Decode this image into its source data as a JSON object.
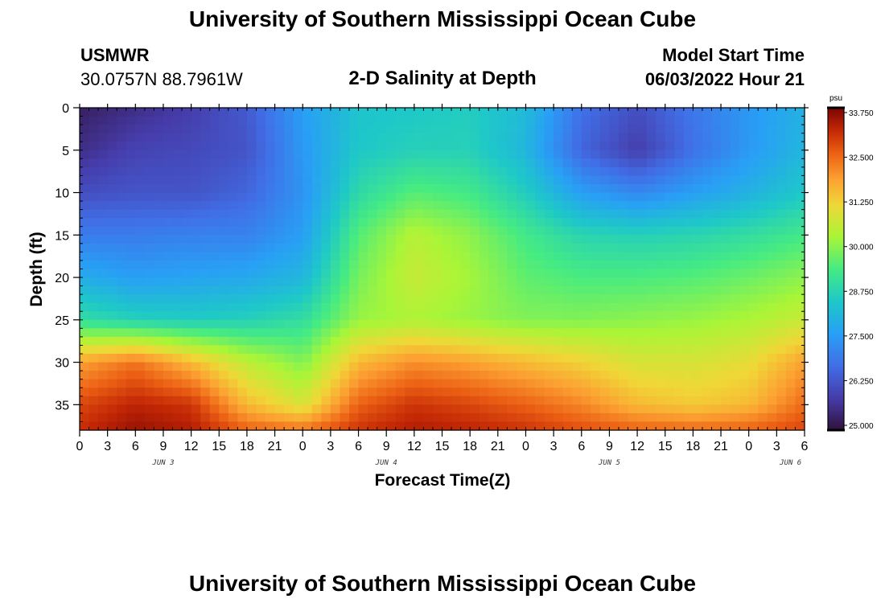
{
  "header": {
    "title": "University of Southern Mississippi Ocean Cube",
    "station_name": "USMWR",
    "coordinates": "30.0757N  88.7961W",
    "plot_title": "2-D Salinity at Depth",
    "model_start_label": "Model Start Time",
    "model_start_value": "06/03/2022 Hour 21"
  },
  "footer": {
    "title": "University of Southern Mississippi Ocean Cube"
  },
  "chart_data": {
    "type": "heatmap",
    "title": "2-D Salinity at Depth",
    "xlabel": "Forecast Time(Z)",
    "ylabel": "Depth (ft)",
    "x_ticks": [
      "0",
      "3",
      "6",
      "9",
      "12",
      "15",
      "18",
      "21",
      "0",
      "3",
      "6",
      "9",
      "12",
      "15",
      "18",
      "21",
      "0",
      "3",
      "6",
      "9",
      "12",
      "15",
      "18",
      "21",
      "0",
      "3",
      "6"
    ],
    "x_day_labels": [
      {
        "label": "JUN 3",
        "tick_index": 3
      },
      {
        "label": "JUN 4",
        "tick_index": 11
      },
      {
        "label": "JUN 5",
        "tick_index": 19
      },
      {
        "label": "JUN 6",
        "tick_index": 25.5
      }
    ],
    "x_range_hours": [
      0,
      78
    ],
    "ylim": [
      0,
      38
    ],
    "y_ticks": [
      0,
      5,
      10,
      15,
      20,
      25,
      30,
      35
    ],
    "colorbar": {
      "unit": "psu",
      "min": 25.0,
      "max": 33.75,
      "ticks": [
        "33.750",
        "32.500",
        "31.250",
        "30.000",
        "28.750",
        "27.500",
        "26.250",
        "25.000"
      ]
    },
    "grid_x_hours": [
      0,
      6,
      12,
      18,
      24,
      30,
      36,
      42,
      48,
      54,
      60,
      66,
      72,
      78
    ],
    "grid_y_depth": [
      0,
      5,
      10,
      15,
      20,
      25,
      30,
      35,
      38
    ],
    "z_values": [
      [
        25.3,
        25.6,
        25.9,
        26.4,
        27.6,
        28.4,
        28.5,
        28.6,
        28.2,
        26.8,
        26.2,
        26.9,
        27.5,
        28.0
      ],
      [
        25.6,
        26.0,
        26.1,
        26.3,
        27.5,
        28.5,
        28.7,
        28.7,
        28.1,
        26.6,
        25.9,
        26.8,
        27.5,
        28.1
      ],
      [
        26.2,
        26.3,
        26.3,
        26.6,
        27.4,
        28.9,
        29.5,
        29.3,
        28.6,
        27.6,
        27.2,
        27.6,
        28.0,
        28.5
      ],
      [
        27.0,
        27.0,
        27.1,
        27.1,
        27.6,
        29.5,
        30.4,
        30.0,
        29.3,
        28.8,
        28.7,
        28.8,
        29.0,
        29.3
      ],
      [
        27.9,
        27.6,
        27.7,
        27.8,
        28.1,
        29.8,
        30.6,
        30.2,
        29.6,
        29.4,
        29.4,
        29.5,
        29.7,
        30.0
      ],
      [
        29.0,
        28.7,
        28.6,
        28.7,
        29.0,
        30.1,
        30.3,
        30.1,
        29.9,
        29.9,
        30.0,
        30.1,
        30.3,
        30.6
      ],
      [
        31.8,
        32.3,
        31.5,
        30.5,
        29.9,
        31.5,
        32.0,
        31.8,
        31.5,
        31.2,
        30.8,
        30.8,
        31.0,
        31.8
      ],
      [
        32.8,
        33.2,
        33.0,
        31.5,
        30.8,
        32.5,
        33.0,
        32.8,
        32.5,
        32.1,
        31.5,
        31.3,
        31.5,
        32.4
      ],
      [
        33.1,
        33.5,
        33.3,
        32.5,
        32.3,
        33.0,
        33.3,
        33.2,
        33.0,
        32.7,
        32.5,
        32.4,
        32.5,
        32.8
      ]
    ]
  }
}
